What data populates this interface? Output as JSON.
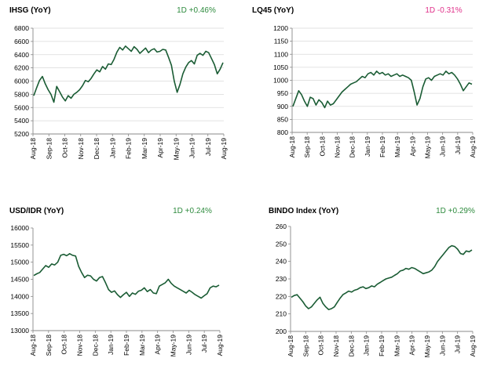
{
  "colors": {
    "line": "#1a5c34",
    "grid": "#d9d9d9",
    "axis": "#888888",
    "up": "#2e8b3e",
    "down": "#e0308a"
  },
  "chart_data": [
    {
      "type": "line",
      "title": "IHSG (YoY)",
      "change": "1D +0.46%",
      "change_color": "#2e8b3e",
      "x_labels": [
        "Aug-18",
        "Sep-18",
        "Oct-18",
        "Nov-18",
        "Dec-18",
        "Jan-19",
        "Feb-19",
        "Mar-19",
        "Apr-19",
        "May-19",
        "Jun-19",
        "Jul-19",
        "Aug-19"
      ],
      "y_ticks": [
        "6800",
        "6600",
        "6400",
        "6200",
        "6000",
        "5800",
        "5600",
        "5400",
        "5200"
      ],
      "ylim": [
        5200,
        6800
      ],
      "grid": true,
      "series": [
        {
          "values": [
            5780,
            5900,
            6010,
            6070,
            5960,
            5870,
            5800,
            5680,
            5920,
            5840,
            5760,
            5700,
            5780,
            5740,
            5800,
            5830,
            5870,
            5930,
            6010,
            5990,
            6040,
            6110,
            6170,
            6140,
            6220,
            6180,
            6260,
            6250,
            6330,
            6440,
            6510,
            6470,
            6530,
            6490,
            6450,
            6520,
            6480,
            6420,
            6460,
            6500,
            6430,
            6470,
            6490,
            6440,
            6450,
            6480,
            6470,
            6360,
            6240,
            6000,
            5830,
            5950,
            6110,
            6210,
            6280,
            6310,
            6260,
            6390,
            6420,
            6390,
            6450,
            6430,
            6340,
            6250,
            6110,
            6180,
            6280
          ]
        }
      ]
    },
    {
      "type": "line",
      "title": "LQ45 (YoY)",
      "change": "1D -0.31%",
      "change_color": "#e0308a",
      "x_labels": [
        "Aug-18",
        "Sep-18",
        "Oct-18",
        "Nov-18",
        "Dec-18",
        "Jan-19",
        "Feb-19",
        "Mar-19",
        "Apr-19",
        "May-19",
        "Jun-19",
        "Jul-19",
        "Aug-19"
      ],
      "y_ticks": [
        "1200",
        "1150",
        "1100",
        "1050",
        "1000",
        "950",
        "900",
        "850",
        "800"
      ],
      "ylim": [
        800,
        1200
      ],
      "grid": true,
      "series": [
        {
          "values": [
            900,
            930,
            960,
            945,
            920,
            900,
            935,
            930,
            905,
            925,
            915,
            895,
            920,
            905,
            910,
            925,
            940,
            955,
            965,
            975,
            985,
            990,
            995,
            1005,
            1015,
            1010,
            1025,
            1030,
            1020,
            1035,
            1025,
            1030,
            1020,
            1025,
            1015,
            1020,
            1025,
            1015,
            1020,
            1015,
            1010,
            1000,
            955,
            905,
            930,
            975,
            1005,
            1010,
            1000,
            1015,
            1020,
            1025,
            1020,
            1035,
            1025,
            1030,
            1020,
            1005,
            985,
            960,
            975,
            990,
            985
          ]
        }
      ]
    },
    {
      "type": "line",
      "title": "USD/IDR  (YoY)",
      "change": "1D +0.24%",
      "change_color": "#2e8b3e",
      "x_labels": [
        "Aug-18",
        "Sep-18",
        "Oct-18",
        "Nov-18",
        "Dec-18",
        "Jan-19",
        "Feb-19",
        "Mar-19",
        "Apr-19",
        "May-19",
        "Jun-19",
        "Jul-19",
        "Aug-19"
      ],
      "y_ticks": [
        "16000",
        "15500",
        "15000",
        "14500",
        "14000",
        "13500",
        "13000"
      ],
      "ylim": [
        13000,
        16000
      ],
      "grid": false,
      "series": [
        {
          "values": [
            14610,
            14660,
            14700,
            14800,
            14900,
            14850,
            14950,
            14920,
            15000,
            15200,
            15230,
            15190,
            15250,
            15200,
            15180,
            14880,
            14700,
            14550,
            14620,
            14600,
            14500,
            14450,
            14550,
            14580,
            14400,
            14200,
            14120,
            14160,
            14050,
            13970,
            14050,
            14120,
            14000,
            14100,
            14060,
            14150,
            14180,
            14250,
            14140,
            14200,
            14100,
            14080,
            14300,
            14350,
            14400,
            14500,
            14380,
            14300,
            14250,
            14200,
            14150,
            14100,
            14180,
            14120,
            14050,
            14000,
            13950,
            14020,
            14080,
            14250,
            14300,
            14280,
            14330
          ]
        }
      ]
    },
    {
      "type": "line",
      "title": "BINDO Index (YoY)",
      "change": "1D +0.29%",
      "change_color": "#2e8b3e",
      "x_labels": [
        "Aug-18",
        "Sep-18",
        "Oct-18",
        "Nov-18",
        "Dec-18",
        "Jan-19",
        "Feb-19",
        "Mar-19",
        "Apr-19",
        "May-19",
        "Jun-19",
        "Jul-19",
        "Aug-19"
      ],
      "y_ticks": [
        "260",
        "250",
        "240",
        "230",
        "220",
        "210",
        "200"
      ],
      "ylim": [
        200,
        260
      ],
      "grid": false,
      "series": [
        {
          "values": [
            219.5,
            220.5,
            221,
            219,
            217,
            214.5,
            213,
            214,
            216,
            218,
            219.5,
            216,
            214,
            212.5,
            213,
            214,
            216.5,
            219,
            221,
            222,
            223,
            222.5,
            223.5,
            224,
            225,
            225.5,
            224.5,
            225,
            226,
            225.5,
            227,
            228,
            229,
            230,
            230.5,
            231,
            232,
            233,
            234.5,
            235,
            236,
            235.5,
            236.5,
            236,
            235,
            234,
            233,
            233.5,
            234,
            235,
            237,
            240,
            242,
            244,
            246,
            248,
            249,
            248.5,
            247,
            244.5,
            244,
            246,
            245.5,
            246.5
          ]
        }
      ]
    }
  ]
}
